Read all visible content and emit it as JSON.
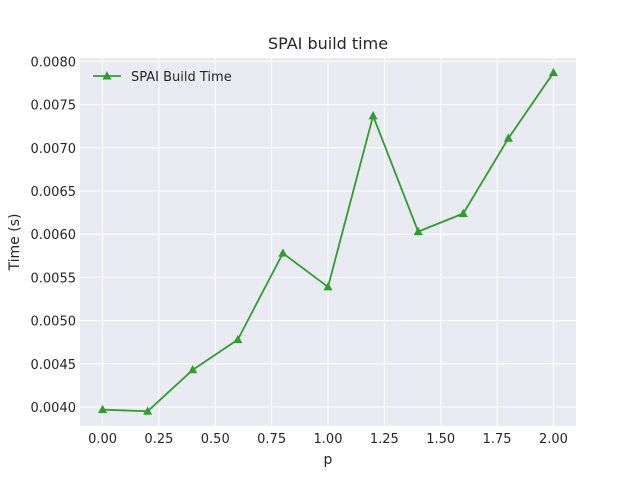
{
  "chart_data": {
    "type": "line",
    "title": "SPAI build time",
    "xlabel": "p",
    "ylabel": "Time (s)",
    "xlim": [
      -0.1,
      2.1
    ],
    "ylim": [
      0.00378,
      0.00804
    ],
    "x_ticks": [
      0.0,
      0.25,
      0.5,
      0.75,
      1.0,
      1.25,
      1.5,
      1.75,
      2.0
    ],
    "x_tick_labels": [
      "0.00",
      "0.25",
      "0.50",
      "0.75",
      "1.00",
      "1.25",
      "1.50",
      "1.75",
      "2.00"
    ],
    "y_ticks": [
      0.004,
      0.0045,
      0.005,
      0.0055,
      0.006,
      0.0065,
      0.007,
      0.0075,
      0.008
    ],
    "y_tick_labels": [
      "0.0040",
      "0.0045",
      "0.0050",
      "0.0055",
      "0.0060",
      "0.0065",
      "0.0070",
      "0.0075",
      "0.0080"
    ],
    "grid": true,
    "legend_position": "top-left",
    "background_color": "#eaeaf2",
    "series": [
      {
        "name": "SPAI Build Time",
        "color": "#2ca02c",
        "marker": "triangle-up",
        "x": [
          0.0,
          0.2,
          0.4,
          0.6,
          0.8,
          1.0,
          1.2,
          1.4,
          1.6,
          1.8,
          2.0
        ],
        "y": [
          0.00397,
          0.00395,
          0.00443,
          0.00478,
          0.00578,
          0.00539,
          0.00737,
          0.00603,
          0.00624,
          0.00711,
          0.00787
        ]
      }
    ]
  }
}
